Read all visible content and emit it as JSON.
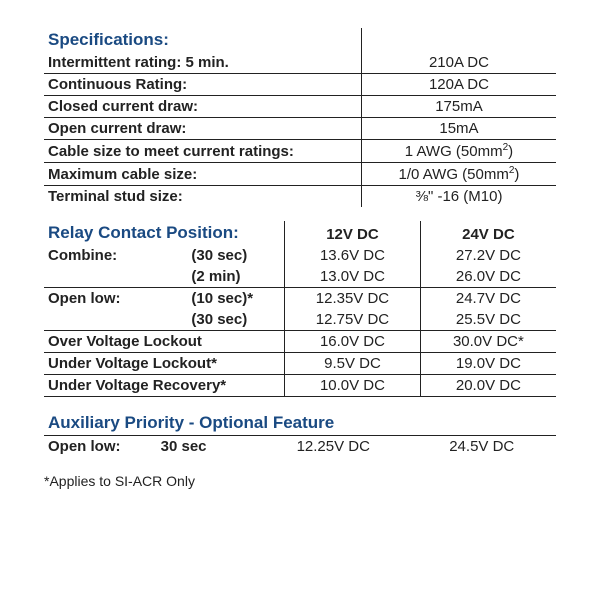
{
  "colors": {
    "heading": "#1a4a82",
    "rule": "#222222",
    "text": "#222222"
  },
  "spec": {
    "title": "Specifications:",
    "rows": [
      {
        "label": "Intermittent rating: 5 min.",
        "value": "210A DC"
      },
      {
        "label": "Continuous Rating:",
        "value": "120A DC"
      },
      {
        "label": "Closed current draw:",
        "value": "175mA"
      },
      {
        "label": "Open current draw:",
        "value": "15mA"
      },
      {
        "label": "Cable size to meet current ratings:",
        "value": "1 AWG (50mm²)"
      },
      {
        "label": "Maximum cable size:",
        "value": "1/0 AWG (50mm²)"
      },
      {
        "label": "Terminal stud size:",
        "value": "⅜\" -16 (M10)"
      }
    ]
  },
  "rcp": {
    "title": "Relay Contact Position:",
    "col12": "12V DC",
    "col24": "24V DC",
    "rows": [
      {
        "c1": "Combine:",
        "c2": "(30 sec)",
        "v12": "13.6V DC",
        "v24": "27.2V DC",
        "under": false
      },
      {
        "c1": "",
        "c2": "(2 min)",
        "v12": "13.0V DC",
        "v24": "26.0V DC",
        "under": true
      },
      {
        "c1": "Open low:",
        "c2": "(10 sec)*",
        "v12": "12.35V DC",
        "v24": "24.7V DC",
        "under": false
      },
      {
        "c1": "",
        "c2": "(30 sec)",
        "v12": "12.75V DC",
        "v24": "25.5V DC",
        "under": true
      },
      {
        "c1": "Over Voltage Lockout",
        "c2": "",
        "v12": "16.0V DC",
        "v24": "30.0V DC*",
        "under": true
      },
      {
        "c1": "Under Voltage Lockout*",
        "c2": "",
        "v12": "9.5V DC",
        "v24": "19.0V DC",
        "under": true
      },
      {
        "c1": "Under Voltage Recovery*",
        "c2": "",
        "v12": "10.0V DC",
        "v24": "20.0V DC",
        "under": true
      }
    ]
  },
  "aux": {
    "title": "Auxiliary Priority - Optional Feature",
    "row": {
      "c1": "Open low:",
      "c2": "30 sec",
      "v12": "12.25V DC",
      "v24": "24.5V DC"
    }
  },
  "footnote": "*Applies to SI-ACR Only"
}
